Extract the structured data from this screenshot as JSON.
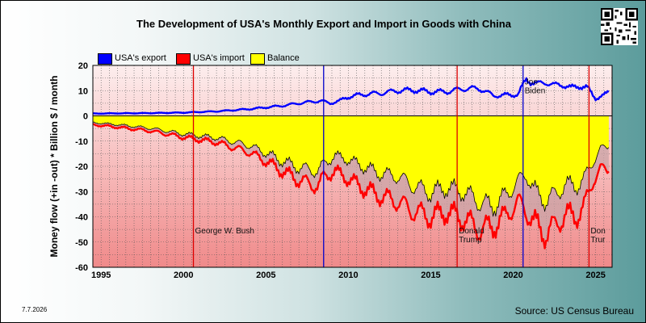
{
  "title": "The Development of USA's Monthly Export and Import in Goods with China",
  "date_stamp": "7.7.2026",
  "source": "Source: US Census Bureau",
  "colors": {
    "export": "#0000ff",
    "import": "#ff0000",
    "balance": "#ffff00",
    "plot_top": "#fdeeee",
    "plot_bottom": "#f08a8a",
    "event_line_republican": "#dd0000",
    "event_line_democrat": "#0000cc"
  },
  "legend": [
    {
      "label": "USA's export",
      "color": "#0000ff"
    },
    {
      "label": "USA's import",
      "color": "#ff0000"
    },
    {
      "label": "Balance",
      "color": "#ffff00"
    }
  ],
  "chart_data": {
    "type": "line",
    "title": "The Development of USA's Monthly Export and Import in Goods with China",
    "xlabel": "",
    "ylabel": "Money flow (+in -out) * Billion $ / month",
    "xlim": [
      1994.5,
      2026.0
    ],
    "ylim": [
      -60,
      20
    ],
    "yticks": [
      20,
      10,
      0,
      -10,
      -20,
      -30,
      -40,
      -50,
      -60
    ],
    "xticks": [
      "1995",
      "2000",
      "2005",
      "2010",
      "2015",
      "2020",
      "2025"
    ],
    "xtick_values": [
      1995,
      2000,
      2005,
      2010,
      2015,
      2020,
      2025
    ],
    "grid": true,
    "legend_position": "top-left",
    "annotations": [
      {
        "x": 2000.6,
        "line": "republican",
        "label": "George W. Bush",
        "label_y": -46.5
      },
      {
        "x": 2008.5,
        "line": "democrat",
        "label": "",
        "label_y": 0
      },
      {
        "x": 2016.6,
        "line": "republican",
        "label": "Donald\nTrump",
        "label_y": -46.5
      },
      {
        "x": 2020.6,
        "line": "democrat",
        "label": "Joe\nBiden",
        "label_y": 12.5
      },
      {
        "x": 2024.6,
        "line": "republican",
        "label": "Don\nTrur",
        "label_y": -46.5
      }
    ],
    "series": [
      {
        "name": "USA's export",
        "x": [
          1994.5,
          1996,
          1998,
          2000,
          2002,
          2004,
          2006,
          2007,
          2008.3,
          2008.9,
          2009.5,
          2010,
          2011,
          2012,
          2013,
          2014,
          2015,
          2016,
          2017,
          2018,
          2018.8,
          2019.5,
          2020.3,
          2020.8,
          2021.5,
          2022,
          2022.5,
          2023,
          2023.5,
          2024,
          2024.5,
          2025,
          2025.5,
          2025.8
        ],
        "values": [
          0.9,
          1.0,
          1.1,
          1.3,
          1.8,
          2.7,
          4.0,
          5.0,
          6.0,
          5.0,
          6.0,
          7.6,
          8.6,
          9.0,
          10.0,
          10.2,
          9.5,
          9.6,
          10.8,
          10.8,
          8.0,
          8.2,
          8.5,
          14.5,
          12.5,
          13.5,
          12.0,
          12.5,
          11.0,
          12.0,
          11.0,
          7.0,
          8.0,
          9.5
        ]
      },
      {
        "name": "USA's import",
        "x": [
          1994.5,
          1996,
          1998,
          2000,
          2002,
          2004,
          2005,
          2006,
          2007,
          2008.2,
          2008.5,
          2009.2,
          2010,
          2011,
          2012,
          2013,
          2014,
          2015,
          2016,
          2017,
          2018,
          2018.7,
          2019.5,
          2020.3,
          2020.8,
          2021.5,
          2022,
          2022.6,
          2023.2,
          2023.8,
          2024.3,
          2024.9,
          2025.3,
          2025.8
        ],
        "values": [
          -3.5,
          -4.5,
          -6.0,
          -8.5,
          -10.5,
          -14.5,
          -18.0,
          -22.0,
          -25.5,
          -28.0,
          -24.0,
          -22.0,
          -25.0,
          -29.0,
          -32.0,
          -34.0,
          -38.0,
          -40.0,
          -38.0,
          -41.0,
          -45.0,
          -44.0,
          -40.0,
          -34.0,
          -38.0,
          -44.0,
          -47.0,
          -43.0,
          -39.0,
          -40.0,
          -36.0,
          -25.0,
          -21.0,
          -22.0
        ]
      },
      {
        "name": "Balance",
        "x": [
          1994.5,
          1996,
          1998,
          2000,
          2002,
          2004,
          2005,
          2006,
          2007,
          2008.2,
          2008.5,
          2009.2,
          2010,
          2011,
          2012,
          2013,
          2014,
          2015,
          2016,
          2017,
          2018,
          2018.7,
          2019.5,
          2020.3,
          2020.8,
          2021.5,
          2022,
          2022.6,
          2023.2,
          2023.8,
          2024.3,
          2024.9,
          2025.3,
          2025.8
        ],
        "values": [
          -2.6,
          -3.5,
          -4.9,
          -7.2,
          -8.7,
          -11.8,
          -14.7,
          -18.0,
          -20.5,
          -22.0,
          -19.0,
          -15.8,
          -17.4,
          -20.4,
          -23.0,
          -24.0,
          -28.0,
          -30.5,
          -28.4,
          -30.2,
          -34.2,
          -36.0,
          -32.0,
          -25.7,
          -23.5,
          -31.5,
          -33.5,
          -31.0,
          -27.0,
          -28.0,
          -25.0,
          -17.5,
          -13.0,
          -12.5
        ]
      }
    ]
  }
}
